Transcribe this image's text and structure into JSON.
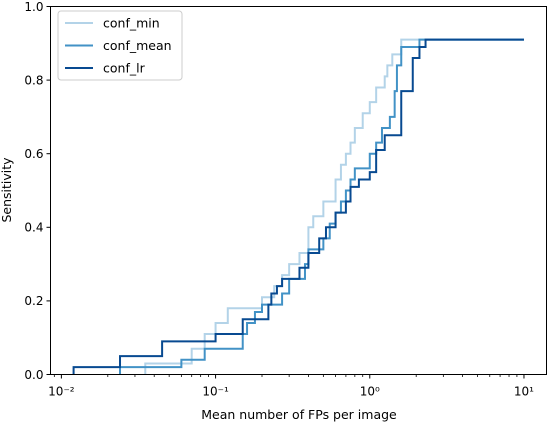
{
  "chart_data": {
    "type": "line",
    "step": true,
    "title": "",
    "xlabel": "Mean number of FPs per image",
    "ylabel": "Sensitivity",
    "xscale": "log",
    "xlim": [
      0.0085,
      14
    ],
    "ylim": [
      0.0,
      1.0
    ],
    "x_ticks": [
      {
        "value": 0.01,
        "label": "10⁻²"
      },
      {
        "value": 0.1,
        "label": "10⁻¹"
      },
      {
        "value": 1,
        "label": "10⁰"
      },
      {
        "value": 10,
        "label": "10¹"
      }
    ],
    "y_ticks": [
      {
        "value": 0.0,
        "label": "0.0"
      },
      {
        "value": 0.2,
        "label": "0.2"
      },
      {
        "value": 0.4,
        "label": "0.4"
      },
      {
        "value": 0.6,
        "label": "0.6"
      },
      {
        "value": 0.8,
        "label": "0.8"
      },
      {
        "value": 1.0,
        "label": "1.0"
      }
    ],
    "grid": false,
    "legend_position": "top-left",
    "series": [
      {
        "name": "conf_min",
        "color": "#b3d3e8",
        "x": [
          0.035,
          0.035,
          0.07,
          0.07,
          0.085,
          0.085,
          0.1,
          0.1,
          0.12,
          0.12,
          0.2,
          0.2,
          0.24,
          0.24,
          0.27,
          0.27,
          0.3,
          0.3,
          0.35,
          0.35,
          0.4,
          0.4,
          0.43,
          0.43,
          0.5,
          0.5,
          0.6,
          0.6,
          0.65,
          0.65,
          0.7,
          0.7,
          0.75,
          0.75,
          0.8,
          0.8,
          0.9,
          0.9,
          1.0,
          1.0,
          1.1,
          1.1,
          1.25,
          1.25,
          1.3,
          1.3,
          1.4,
          1.4,
          1.6,
          1.6,
          2.0,
          2.0,
          10.0
        ],
        "y": [
          0.0,
          0.03,
          0.03,
          0.07,
          0.07,
          0.11,
          0.11,
          0.14,
          0.14,
          0.18,
          0.18,
          0.21,
          0.21,
          0.24,
          0.24,
          0.27,
          0.27,
          0.3,
          0.3,
          0.33,
          0.33,
          0.4,
          0.4,
          0.43,
          0.43,
          0.47,
          0.47,
          0.53,
          0.53,
          0.57,
          0.57,
          0.6,
          0.6,
          0.63,
          0.63,
          0.67,
          0.67,
          0.71,
          0.71,
          0.74,
          0.74,
          0.78,
          0.78,
          0.81,
          0.81,
          0.84,
          0.84,
          0.87,
          0.87,
          0.91,
          0.91,
          0.91,
          0.91
        ]
      },
      {
        "name": "conf_mean",
        "color": "#4292c6",
        "x": [
          0.024,
          0.024,
          0.06,
          0.06,
          0.085,
          0.085,
          0.15,
          0.15,
          0.16,
          0.16,
          0.18,
          0.18,
          0.2,
          0.2,
          0.27,
          0.27,
          0.3,
          0.3,
          0.38,
          0.38,
          0.4,
          0.4,
          0.5,
          0.5,
          0.55,
          0.55,
          0.6,
          0.6,
          0.65,
          0.65,
          0.7,
          0.7,
          0.75,
          0.75,
          0.8,
          0.8,
          1.0,
          1.0,
          1.1,
          1.1,
          1.2,
          1.2,
          1.35,
          1.35,
          1.45,
          1.45,
          1.5,
          1.5,
          1.6,
          1.6,
          2.1,
          2.1,
          10.0
        ],
        "y": [
          0.0,
          0.02,
          0.02,
          0.04,
          0.04,
          0.07,
          0.07,
          0.11,
          0.11,
          0.14,
          0.14,
          0.17,
          0.17,
          0.19,
          0.19,
          0.22,
          0.22,
          0.26,
          0.26,
          0.3,
          0.3,
          0.34,
          0.34,
          0.37,
          0.37,
          0.41,
          0.41,
          0.44,
          0.44,
          0.47,
          0.47,
          0.5,
          0.5,
          0.53,
          0.53,
          0.56,
          0.56,
          0.6,
          0.6,
          0.63,
          0.63,
          0.67,
          0.67,
          0.7,
          0.7,
          0.77,
          0.77,
          0.84,
          0.84,
          0.89,
          0.89,
          0.91,
          0.91
        ]
      },
      {
        "name": "conf_lr",
        "color": "#084a91",
        "x": [
          0.012,
          0.012,
          0.024,
          0.024,
          0.045,
          0.045,
          0.1,
          0.1,
          0.15,
          0.15,
          0.22,
          0.22,
          0.23,
          0.23,
          0.25,
          0.25,
          0.27,
          0.27,
          0.35,
          0.35,
          0.4,
          0.4,
          0.47,
          0.47,
          0.52,
          0.52,
          0.6,
          0.6,
          0.7,
          0.7,
          0.75,
          0.75,
          0.85,
          0.85,
          1.0,
          1.0,
          1.1,
          1.1,
          1.25,
          1.25,
          1.6,
          1.6,
          1.9,
          1.9,
          2.1,
          2.1,
          2.3,
          2.3,
          2.4,
          2.4,
          10.0
        ],
        "y": [
          0.0,
          0.02,
          0.02,
          0.05,
          0.05,
          0.09,
          0.09,
          0.11,
          0.11,
          0.15,
          0.15,
          0.19,
          0.19,
          0.22,
          0.22,
          0.24,
          0.24,
          0.26,
          0.26,
          0.29,
          0.29,
          0.33,
          0.33,
          0.37,
          0.37,
          0.4,
          0.4,
          0.44,
          0.44,
          0.47,
          0.47,
          0.51,
          0.51,
          0.53,
          0.53,
          0.55,
          0.55,
          0.61,
          0.61,
          0.65,
          0.65,
          0.77,
          0.77,
          0.86,
          0.86,
          0.89,
          0.89,
          0.91,
          0.91,
          0.91,
          0.91
        ]
      }
    ]
  }
}
